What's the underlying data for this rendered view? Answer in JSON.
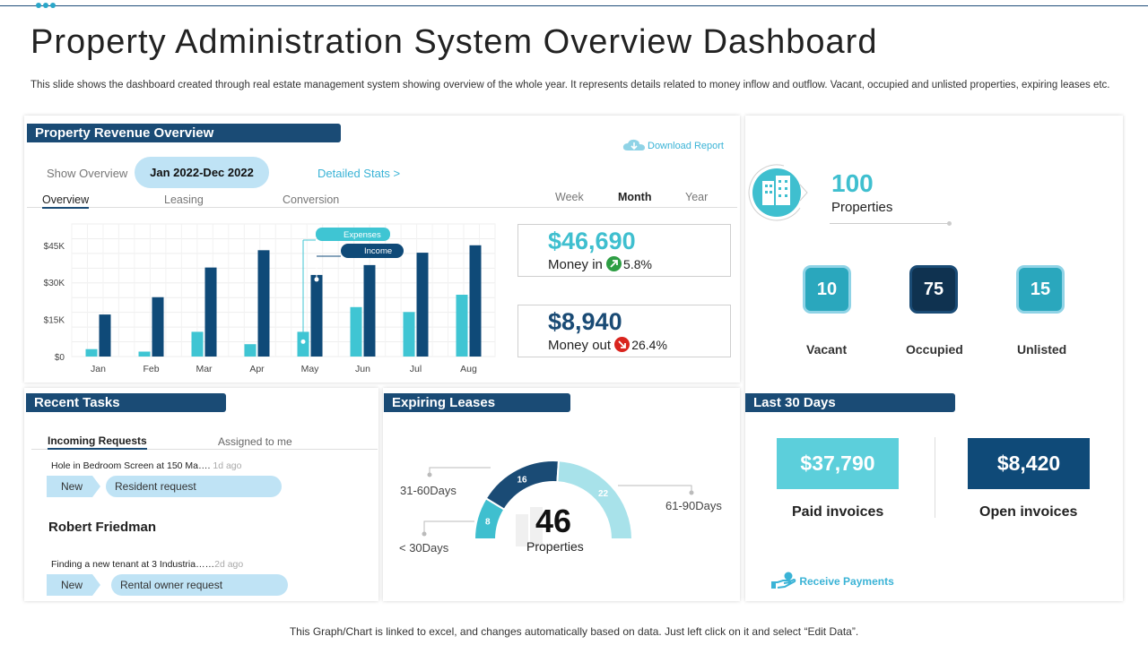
{
  "page": {
    "title": "Property Administration System Overview Dashboard",
    "description": "This slide shows the dashboard created through real estate management system showing overview of the whole year.  It represents details related to money inflow and outflow. Vacant,  occupied and unlisted properties, expiring leases etc.",
    "footer": "This Graph/Chart is linked to excel, and changes automatically based on data. Just left click on it and select “Edit Data”."
  },
  "revenue": {
    "title": "Property Revenue Overview",
    "download_label": "Download Report",
    "show_overview_label": "Show Overview",
    "date_range": "Jan 2022-Dec 2022",
    "detailed_stats": "Detailed Stats  >",
    "tabs": [
      "Overview",
      "Leasing",
      "Conversion"
    ],
    "periods": [
      "Week",
      "Month",
      "Year"
    ],
    "money_in": {
      "value": "$46,690",
      "label": "Money in",
      "pct": "5.8%"
    },
    "money_out": {
      "value": "$8,940",
      "label": "Money out",
      "pct": "26.4%"
    }
  },
  "chart_data": {
    "type": "bar",
    "categories": [
      "Jan",
      "Feb",
      "Mar",
      "Apr",
      "May",
      "Jun",
      "Jul",
      "Aug"
    ],
    "series": [
      {
        "name": "Expenses",
        "values": [
          3000,
          2000,
          10000,
          5000,
          10000,
          20000,
          18000,
          25000
        ]
      },
      {
        "name": "Income",
        "values": [
          17000,
          24000,
          36000,
          43000,
          33000,
          37000,
          42000,
          45000
        ]
      }
    ],
    "ylim": [
      0,
      50000
    ],
    "yticks": [
      0,
      15000,
      30000,
      45000
    ],
    "ytick_labels": [
      "$0",
      "$15K",
      "$30K",
      "$45K"
    ],
    "legend": [
      "Expenses",
      "Income"
    ]
  },
  "properties": {
    "total": "100",
    "total_label": "Properties",
    "stats": [
      {
        "value": "10",
        "label": "Vacant"
      },
      {
        "value": "75",
        "label": "Occupied"
      },
      {
        "value": "15",
        "label": "Unlisted"
      }
    ]
  },
  "tasks": {
    "title": "Recent Tasks",
    "tabs": [
      "Incoming Requests",
      "Assigned to me"
    ],
    "items": [
      {
        "text": "Hole in Bedroom Screen at 150 Ma….",
        "time": "1d ago",
        "status": "New",
        "type": "Resident request"
      },
      {
        "text": "Finding  a new tenant at 3 Industria……",
        "time": "2d ago",
        "status": "New",
        "type": "Rental owner request"
      }
    ],
    "person": "Robert Friedman"
  },
  "leases": {
    "title": "Expiring Leases",
    "total": "46",
    "total_label": "Properties",
    "segments": [
      {
        "label": "< 30Days",
        "value": 8,
        "color": "#3fbfcf"
      },
      {
        "label": "31-60Days",
        "value": 16,
        "color": "#1a4b75"
      },
      {
        "label": "61-90Days",
        "value": 22,
        "color": "#a8e2ea"
      }
    ]
  },
  "last30": {
    "title": "Last 30 Days",
    "paid": {
      "value": "$37,790",
      "label": "Paid invoices"
    },
    "open": {
      "value": "$8,420",
      "label": "Open invoices"
    },
    "receive_label": "Receive Payments"
  }
}
